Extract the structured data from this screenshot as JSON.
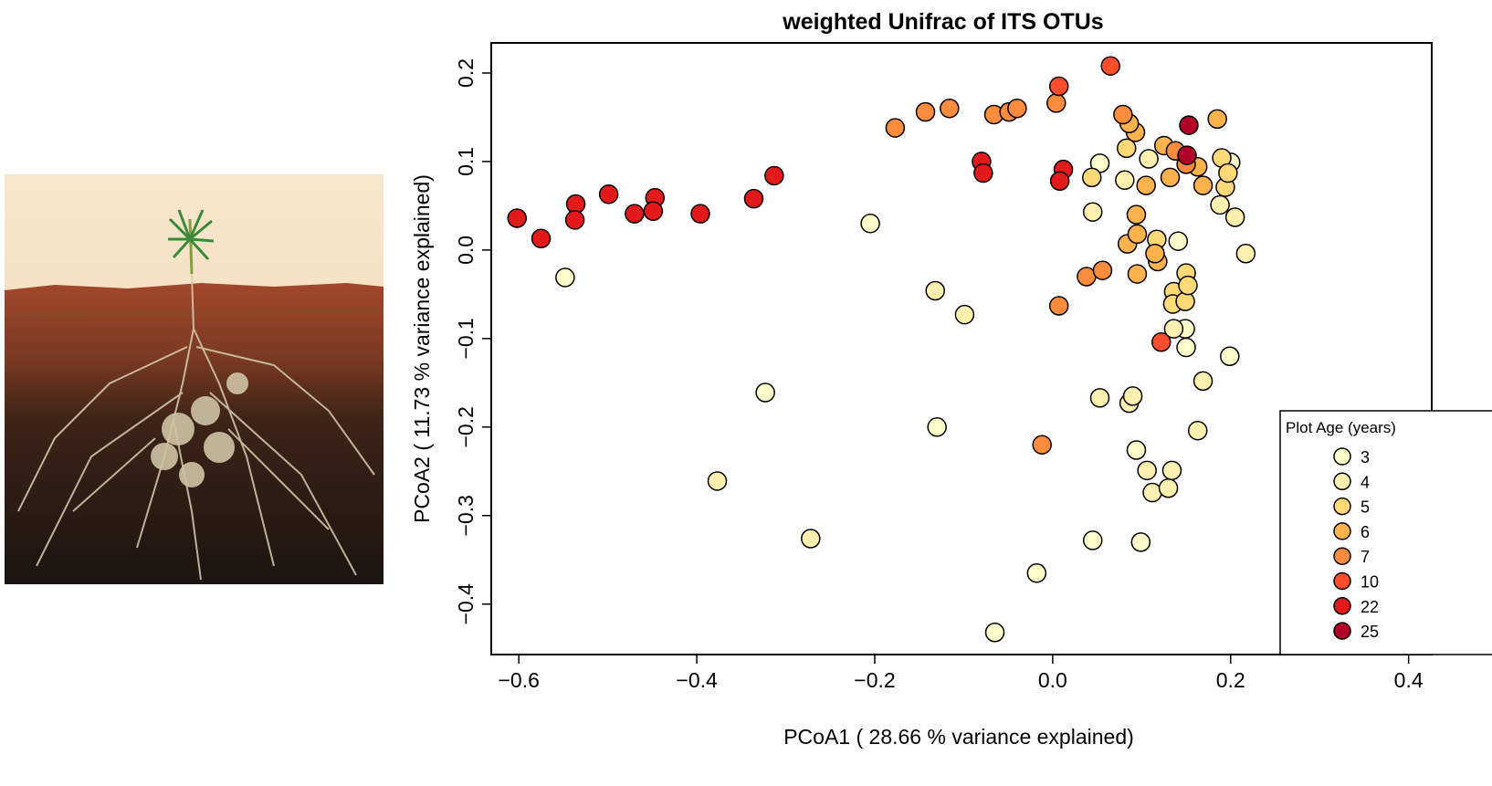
{
  "chart_data": {
    "type": "scatter",
    "title": "weighted Unifrac of ITS OTUs",
    "x_label": "PCoA1 ( 28.66 % variance explained)",
    "y_label": "PCoA2 ( 11.73 % variance explained)",
    "legend_title": "Plot Age (years)",
    "legend_position": "lower right",
    "xlim": [
      -0.631,
      0.426
    ],
    "ylim": [
      -0.457,
      0.234
    ],
    "xticks": [
      {
        "value": -0.6,
        "label": "−0.6"
      },
      {
        "value": -0.4,
        "label": "−0.4"
      },
      {
        "value": -0.2,
        "label": "−0.2"
      },
      {
        "value": 0,
        "label": "0.0"
      },
      0.2,
      0.4
    ],
    "yticks": [
      {
        "value": -0.4,
        "label": "−0.4"
      },
      {
        "value": -0.3,
        "label": "−0.3"
      },
      {
        "value": -0.2,
        "label": "−0.2"
      },
      {
        "value": -0.1,
        "label": "−0.1"
      },
      {
        "value": 0,
        "label": "0.0"
      },
      0.1,
      0.2
    ],
    "series": [
      {
        "name": "3",
        "color": "#FFFFCC",
        "x": [
          -0.548,
          -0.205,
          0.053,
          0.2,
          0.141,
          -0.065,
          -0.018,
          0.045,
          0.099,
          0.094,
          0.149,
          0.199,
          0.15,
          -0.13,
          -0.323
        ],
        "y": [
          -0.031,
          0.03,
          0.098,
          0.099,
          0.01,
          -0.432,
          -0.365,
          -0.328,
          -0.33,
          -0.226,
          -0.089,
          -0.12,
          -0.11,
          -0.2,
          -0.161
        ]
      },
      {
        "name": "4",
        "color": "#FFF0B0",
        "x": [
          -0.377,
          -0.272,
          -0.132,
          -0.099,
          0.053,
          0.086,
          0.09,
          0.163,
          0.106,
          0.112,
          0.13,
          0.134,
          0.169,
          0.136,
          0.217,
          0.205,
          0.188,
          0.081,
          0.045,
          0.108
        ],
        "y": [
          -0.261,
          -0.326,
          -0.046,
          -0.073,
          -0.167,
          -0.173,
          -0.165,
          -0.204,
          -0.249,
          -0.274,
          -0.269,
          -0.249,
          -0.148,
          -0.089,
          -0.004,
          0.037,
          0.051,
          0.079,
          0.043,
          0.103
        ]
      },
      {
        "name": "5",
        "color": "#FED976",
        "x": [
          0.044,
          0.136,
          0.135,
          0.149,
          0.15,
          0.152,
          0.083,
          0.19,
          0.194,
          0.197,
          0.117
        ],
        "y": [
          0.082,
          -0.047,
          -0.061,
          -0.058,
          -0.026,
          -0.04,
          0.115,
          0.104,
          0.071,
          0.087,
          0.012
        ]
      },
      {
        "name": "6",
        "color": "#FEB24C",
        "x": [
          0.094,
          0.095,
          0.084,
          0.095,
          0.118,
          0.115,
          0.105,
          0.125,
          0.093,
          0.185,
          0.169,
          0.163,
          0.132,
          0.086
        ],
        "y": [
          0.04,
          -0.027,
          0.007,
          0.018,
          -0.013,
          -0.004,
          0.073,
          0.118,
          0.133,
          0.148,
          0.073,
          0.094,
          0.082,
          0.143
        ]
      },
      {
        "name": "7",
        "color": "#FD8D3C",
        "x": [
          -0.177,
          -0.143,
          -0.116,
          -0.066,
          -0.049,
          -0.04,
          0.004,
          0.038,
          0.056,
          0.007,
          -0.012,
          0.079,
          0.15,
          0.138
        ],
        "y": [
          0.138,
          0.156,
          0.16,
          0.153,
          0.156,
          0.16,
          0.166,
          -0.03,
          -0.023,
          -0.063,
          -0.22,
          0.153,
          0.097,
          0.112
        ]
      },
      {
        "name": "10",
        "color": "#FC4E2A",
        "x": [
          0.065,
          0.007,
          0.122
        ],
        "y": [
          0.208,
          0.185,
          -0.104
        ]
      },
      {
        "name": "22",
        "color": "#E31A1C",
        "x": [
          -0.602,
          -0.575,
          -0.536,
          -0.537,
          -0.499,
          -0.47,
          -0.447,
          -0.449,
          -0.396,
          -0.336,
          -0.313,
          -0.08,
          -0.078,
          0.012,
          0.008
        ],
        "y": [
          0.036,
          0.013,
          0.052,
          0.034,
          0.063,
          0.041,
          0.059,
          0.044,
          0.041,
          0.058,
          0.084,
          0.1,
          0.087,
          0.091,
          0.078
        ]
      },
      {
        "name": "25",
        "color": "#B10026",
        "x": [
          0.153,
          0.151
        ],
        "y": [
          0.141,
          0.107
        ]
      }
    ]
  }
}
